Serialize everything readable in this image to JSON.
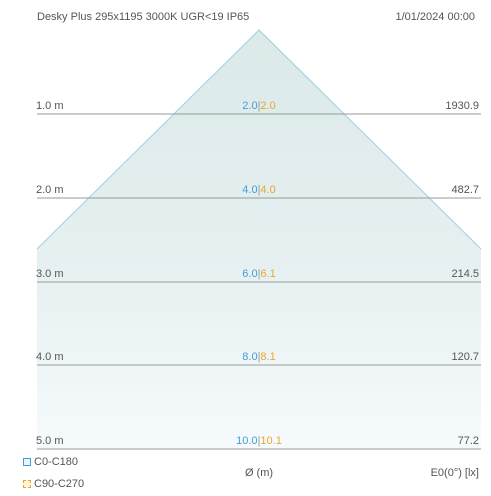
{
  "header": {
    "product": "Desky Plus 295x1195 3000K UGR<19 IP65",
    "datetime": "1/01/2024 00:00"
  },
  "rows": [
    {
      "distance": "1.0 m",
      "d_c0": "2.0",
      "d_c90": "2.0",
      "lux": "1930.9"
    },
    {
      "distance": "2.0 m",
      "d_c0": "4.0",
      "d_c90": "4.0",
      "lux": "482.7"
    },
    {
      "distance": "3.0 m",
      "d_c0": "6.0",
      "d_c90": "6.1",
      "lux": "214.5"
    },
    {
      "distance": "4.0 m",
      "d_c0": "8.0",
      "d_c90": "8.1",
      "lux": "120.7"
    },
    {
      "distance": "5.0 m",
      "d_c0": "10.0",
      "d_c90": "10.1",
      "lux": "77.2"
    }
  ],
  "separator": "|",
  "legend": {
    "c0_label": "C0-C180",
    "c90_label": "C90-C270"
  },
  "footer": {
    "diameter_label": "Ø (m)",
    "illuminance_label": "E0(0°) [lx]"
  },
  "colors": {
    "c0": "#3f9fd8",
    "c90": "#e8a62d",
    "cone_fill": "#e2eeee",
    "cone_stroke": "#9fcfe0",
    "grid_line": "#9a9a9a"
  }
}
